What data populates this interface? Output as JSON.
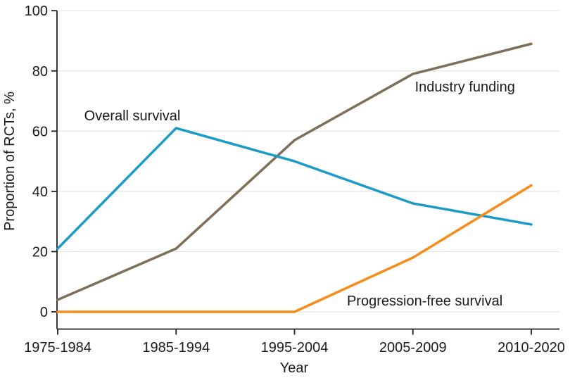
{
  "chart_data": {
    "type": "line",
    "categories": [
      "1975-1984",
      "1985-1994",
      "1995-2004",
      "2005-2009",
      "2010-2020"
    ],
    "series": [
      {
        "name": "Industry funding",
        "color": "#7d6f5a",
        "values": [
          4,
          21,
          57,
          79,
          89
        ]
      },
      {
        "name": "Overall survival",
        "color": "#1b9bc7",
        "values": [
          21,
          61,
          50,
          36,
          29
        ]
      },
      {
        "name": "Progression-free survival",
        "color": "#f88c1b",
        "values": [
          0,
          0,
          0,
          18,
          42
        ]
      }
    ],
    "annotations": [
      {
        "text": "Overall survival",
        "cat_x": 0.63,
        "value_y": 65.2
      },
      {
        "text": "Industry funding",
        "cat_x": 3.44,
        "value_y": 74.8
      },
      {
        "text": "Progression-free survival",
        "cat_x": 3.1,
        "value_y": 3.7
      }
    ],
    "xlabel": "Year",
    "ylabel": "Proportion of RCTs, %",
    "ylim": [
      0,
      100
    ],
    "yticks": [
      0,
      20,
      40,
      60,
      80,
      100
    ],
    "grid": "horizontal",
    "legend": "inline-labels",
    "colors": {
      "axis": "#222222",
      "grid": "#e3e3e3",
      "text": "#1a1a1a",
      "background": "#ffffff"
    }
  }
}
